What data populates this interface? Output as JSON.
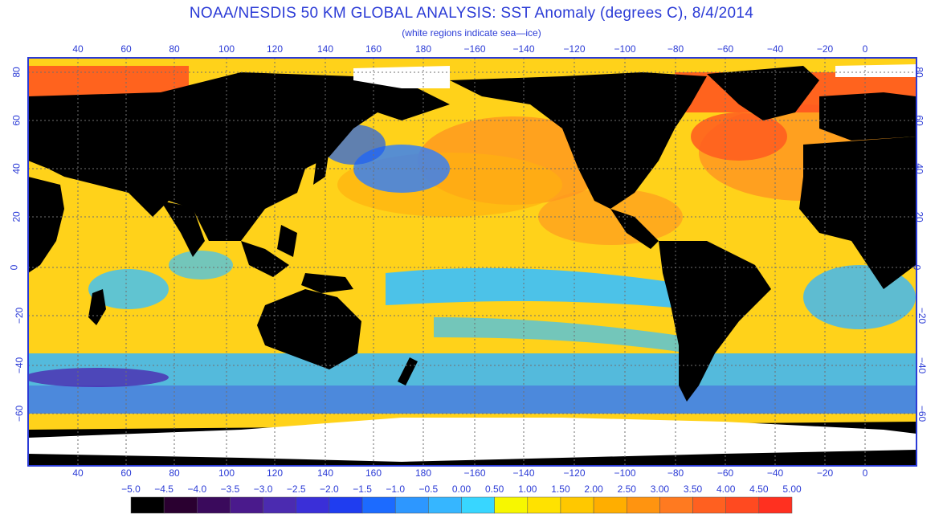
{
  "title": "NOAA/NESDIS 50 KM GLOBAL ANALYSIS: SST Anomaly (degrees C), 8/4/2014",
  "subtitle": "(white regions indicate sea—ice)",
  "top_lon_labels": [
    "40",
    "60",
    "80",
    "100",
    "120",
    "140",
    "160",
    "180",
    "−160",
    "−140",
    "−120",
    "−100",
    "−80",
    "−60",
    "−40",
    "−20",
    "0"
  ],
  "bottom_lon_labels": [
    "40",
    "60",
    "80",
    "100",
    "120",
    "140",
    "160",
    "180",
    "−160",
    "−140",
    "−120",
    "−100",
    "−80",
    "−60",
    "−40",
    "−20",
    "0"
  ],
  "lat_labels": [
    "80",
    "60",
    "40",
    "20",
    "0",
    "−20",
    "−40",
    "−60"
  ],
  "colorbar": {
    "labels": [
      "−5.0",
      "−4.5",
      "−4.0",
      "−3.5",
      "−3.0",
      "−2.5",
      "−2.0",
      "−1.5",
      "−1.0",
      "−0.5",
      "0.00",
      "0.50",
      "1.00",
      "1.50",
      "2.00",
      "2.50",
      "3.00",
      "3.50",
      "4.00",
      "4.50",
      "5.00"
    ],
    "colors": [
      "#000000",
      "#2a0030",
      "#3a0a5c",
      "#4a1a8c",
      "#4b2bb0",
      "#3a2fd8",
      "#1f3df0",
      "#1c6bff",
      "#2d97ff",
      "#36b6ff",
      "#38d6ff",
      "#f7f700",
      "#ffe200",
      "#ffc800",
      "#ffae00",
      "#ff9410",
      "#ff7a20",
      "#ff6020",
      "#ff4a20",
      "#ff3020"
    ]
  },
  "colors": {
    "ocean": "#ffd21a",
    "land": "#000000",
    "ice": "#ffffff",
    "grid": "#6f6f6f",
    "frame": "#2b3bd6",
    "text": "#2b3bd6"
  },
  "chart_data": {
    "type": "heatmap",
    "variable": "SST Anomaly (degrees C)",
    "date": "8/4/2014",
    "lon_ticks": [
      40,
      60,
      80,
      100,
      120,
      140,
      160,
      180,
      -160,
      -140,
      -120,
      -100,
      -80,
      -60,
      -40,
      -20,
      0
    ],
    "lat_ticks": [
      80,
      60,
      40,
      20,
      0,
      -20,
      -40,
      -60
    ],
    "color_scale": [
      -5.0,
      -4.5,
      -4.0,
      -3.5,
      -3.0,
      -2.5,
      -2.0,
      -1.5,
      -1.0,
      -0.5,
      0.0,
      0.5,
      1.0,
      1.5,
      2.0,
      2.5,
      3.0,
      3.5,
      4.0,
      4.5,
      5.0
    ]
  }
}
